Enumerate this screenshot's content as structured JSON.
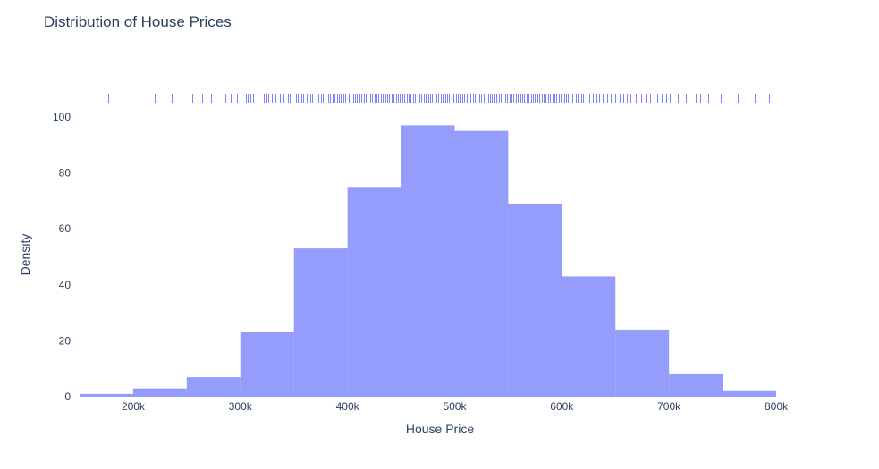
{
  "chart_data": {
    "type": "bar",
    "title": "Distribution of House Prices",
    "xlabel": "House Price",
    "ylabel": "Density",
    "bin_edges": [
      150000,
      200000,
      250000,
      300000,
      350000,
      400000,
      450000,
      500000,
      550000,
      600000,
      650000,
      700000,
      750000,
      800000
    ],
    "values": [
      1,
      3,
      7,
      23,
      53,
      75,
      97,
      95,
      69,
      43,
      24,
      8,
      2
    ],
    "xlim": [
      150000,
      800000
    ],
    "ylim": [
      0,
      100
    ],
    "x_ticks": [
      200000,
      300000,
      400000,
      500000,
      600000,
      700000,
      800000
    ],
    "x_tick_labels": [
      "200k",
      "300k",
      "400k",
      "500k",
      "600k",
      "700k",
      "800k"
    ],
    "y_ticks": [
      0,
      20,
      40,
      60,
      80,
      100
    ],
    "y_tick_labels": [
      "0",
      "20",
      "40",
      "60",
      "80",
      "100"
    ],
    "rug": [
      177000,
      220000,
      236000,
      245000,
      253000,
      255000,
      264000,
      273000,
      277000,
      286000,
      291000,
      297000,
      300000,
      305000,
      307000,
      309000,
      312000,
      322000,
      324000,
      326000,
      329000,
      333000,
      337000,
      340000,
      344000,
      346000,
      348000,
      352000,
      354000,
      357000,
      359000,
      362000,
      365000,
      367000,
      371000,
      373000,
      375000,
      377000,
      379000,
      382000,
      384000,
      386000,
      388000,
      390000,
      392000,
      394000,
      396000,
      398000,
      401000,
      403000,
      405000,
      407000,
      409000,
      411000,
      413000,
      415000,
      417000,
      419000,
      421000,
      423000,
      425000,
      427000,
      429000,
      431000,
      433000,
      435000,
      437000,
      439000,
      441000,
      443000,
      445000,
      447000,
      449000,
      451000,
      453000,
      455000,
      457000,
      459000,
      461000,
      463000,
      465000,
      467000,
      469000,
      471000,
      473000,
      475000,
      477000,
      479000,
      481000,
      483000,
      485000,
      487000,
      489000,
      491000,
      493000,
      495000,
      497000,
      499000,
      501000,
      503000,
      505000,
      507000,
      509000,
      511000,
      513000,
      515000,
      517000,
      519000,
      521000,
      523000,
      525000,
      527000,
      529000,
      531000,
      533000,
      535000,
      537000,
      539000,
      541000,
      543000,
      545000,
      547000,
      549000,
      551000,
      553000,
      555000,
      557000,
      559000,
      561000,
      563000,
      565000,
      567000,
      569000,
      571000,
      573000,
      575000,
      577000,
      579000,
      581000,
      583000,
      585000,
      587000,
      589000,
      591000,
      593000,
      595000,
      597000,
      599000,
      602000,
      604000,
      606000,
      608000,
      610000,
      613000,
      615000,
      618000,
      620000,
      623000,
      626000,
      629000,
      632000,
      635000,
      638000,
      642000,
      646000,
      650000,
      654000,
      657000,
      661000,
      664000,
      669000,
      674000,
      678000,
      682000,
      689000,
      693000,
      697000,
      701000,
      708000,
      716000,
      725000,
      729000,
      737000,
      748000,
      764000,
      780000,
      793000
    ]
  }
}
